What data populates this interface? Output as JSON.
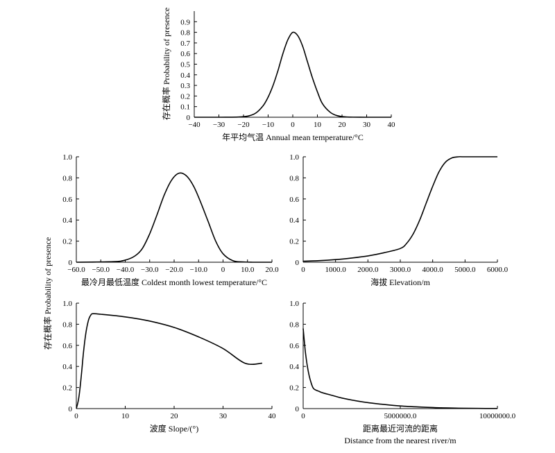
{
  "chart_data": [
    {
      "type": "line",
      "xlabel": "年平均气温 Annual mean temperature/°C",
      "xlabel2": "",
      "ylabel": "存在概率 Probability of presence",
      "xlim": [
        -40,
        40
      ],
      "ylim": [
        0,
        1.0
      ],
      "xticks": [
        -40,
        -30,
        -20,
        -10,
        0,
        10,
        20,
        30,
        40
      ],
      "xtick_labels": [
        "−40",
        "−30",
        "−20",
        "−10",
        "0",
        "10",
        "20",
        "30",
        "40"
      ],
      "yticks": [
        0,
        0.1,
        0.2,
        0.3,
        0.4,
        0.5,
        0.6,
        0.7,
        0.8,
        0.9
      ],
      "ytick_labels": [
        "0",
        "0.1",
        "0.2",
        "0.3",
        "0.4",
        "0.5",
        "0.6",
        "0.7",
        "0.8",
        "0.9"
      ],
      "x": [
        -40,
        -30,
        -22,
        -18,
        -15,
        -12,
        -10,
        -8,
        -6,
        -4,
        -2,
        0,
        2,
        4,
        6,
        8,
        10,
        12,
        15,
        18,
        22,
        30,
        40
      ],
      "y": [
        0,
        0,
        0.002,
        0.012,
        0.04,
        0.11,
        0.19,
        0.3,
        0.44,
        0.6,
        0.73,
        0.8,
        0.77,
        0.67,
        0.52,
        0.37,
        0.24,
        0.13,
        0.05,
        0.015,
        0.002,
        0,
        0
      ]
    },
    {
      "type": "line",
      "xlabel": "最冷月最低温度 Coldest month lowest temperature/°C",
      "xlabel2": "",
      "ylabel": "",
      "xlim": [
        -60,
        20
      ],
      "ylim": [
        0,
        1.0
      ],
      "xticks": [
        -60,
        -50,
        -40,
        -30,
        -20,
        -10,
        0,
        10,
        20
      ],
      "xtick_labels": [
        "−60.0",
        "−50.0",
        "−40.0",
        "−30.0",
        "−20.0",
        "−10.0",
        "0",
        "10.0",
        "20.0"
      ],
      "yticks": [
        0,
        0.2,
        0.4,
        0.6,
        0.8,
        1.0
      ],
      "ytick_labels": [
        "0",
        "0.2",
        "0.4",
        "0.6",
        "0.8",
        "1.0"
      ],
      "x": [
        -60,
        -45,
        -40,
        -36,
        -33,
        -30,
        -27,
        -24,
        -21,
        -18,
        -15,
        -12,
        -9,
        -6,
        -3,
        0,
        4,
        8,
        12,
        20
      ],
      "y": [
        0,
        0.005,
        0.02,
        0.06,
        0.13,
        0.27,
        0.45,
        0.64,
        0.78,
        0.845,
        0.82,
        0.72,
        0.56,
        0.38,
        0.2,
        0.08,
        0.015,
        0.003,
        0,
        0
      ]
    },
    {
      "type": "line",
      "xlabel": "海拔 Elevation/m",
      "xlabel2": "",
      "ylabel": "",
      "xlim": [
        0,
        6000
      ],
      "ylim": [
        0,
        1.0
      ],
      "xticks": [
        0,
        1000,
        2000,
        3000,
        4000,
        5000,
        6000
      ],
      "xtick_labels": [
        "0",
        "1000.0",
        "2000.0",
        "3000.0",
        "4000.0",
        "5000.0",
        "6000.0"
      ],
      "yticks": [
        0,
        0.2,
        0.4,
        0.6,
        0.8,
        1.0
      ],
      "ytick_labels": [
        "0",
        "0.2",
        "0.4",
        "0.6",
        "0.8",
        "1.0"
      ],
      "x": [
        0,
        500,
        1000,
        1500,
        2000,
        2500,
        3000,
        3200,
        3400,
        3600,
        3800,
        4000,
        4200,
        4400,
        4600,
        4800,
        5000,
        6000
      ],
      "y": [
        0.01,
        0.015,
        0.025,
        0.04,
        0.06,
        0.09,
        0.13,
        0.18,
        0.27,
        0.4,
        0.56,
        0.72,
        0.86,
        0.95,
        0.99,
        1.0,
        1.0,
        1.0
      ]
    },
    {
      "type": "line",
      "xlabel": "波度 Slope/(°)",
      "xlabel2": "",
      "ylabel": "存在概率 Probability of presence",
      "xlim": [
        0,
        40
      ],
      "ylim": [
        0,
        1.0
      ],
      "xticks": [
        0,
        10,
        20,
        30,
        40
      ],
      "xtick_labels": [
        "0",
        "10",
        "20",
        "30",
        "40"
      ],
      "yticks": [
        0,
        0.2,
        0.4,
        0.6,
        0.8,
        1.0
      ],
      "ytick_labels": [
        "0",
        "0.2",
        "0.4",
        "0.6",
        "0.8",
        "1.0"
      ],
      "x": [
        0,
        0.5,
        1,
        1.5,
        2,
        2.5,
        3,
        3.5,
        5,
        10,
        15,
        20,
        25,
        30,
        34.5,
        38
      ],
      "y": [
        0,
        0.1,
        0.3,
        0.55,
        0.73,
        0.84,
        0.89,
        0.9,
        0.895,
        0.87,
        0.83,
        0.77,
        0.68,
        0.57,
        0.43,
        0.43
      ]
    },
    {
      "type": "line",
      "xlabel": "距离最近河流的距离",
      "xlabel2": "Distance from the nearest river/m",
      "ylabel": "",
      "xlim": [
        0,
        10000000
      ],
      "ylim": [
        0,
        1.0
      ],
      "xticks": [
        0,
        5000000,
        10000000
      ],
      "xtick_labels": [
        "0",
        "5000000.0",
        "10000000.0"
      ],
      "yticks": [
        0,
        0.2,
        0.4,
        0.6,
        0.8,
        1.0
      ],
      "ytick_labels": [
        "0",
        "0.2",
        "0.4",
        "0.6",
        "0.8",
        "1.0"
      ],
      "x": [
        0,
        100000,
        200000,
        300000,
        400000,
        500000,
        600000,
        800000,
        1000000,
        1500000,
        2000000,
        3000000,
        4000000,
        5000000,
        6000000,
        7000000,
        8000000,
        9000000,
        10000000
      ],
      "y": [
        0.76,
        0.56,
        0.42,
        0.32,
        0.25,
        0.2,
        0.18,
        0.165,
        0.15,
        0.125,
        0.1,
        0.065,
        0.042,
        0.025,
        0.015,
        0.008,
        0.004,
        0.002,
        0.001
      ]
    }
  ]
}
